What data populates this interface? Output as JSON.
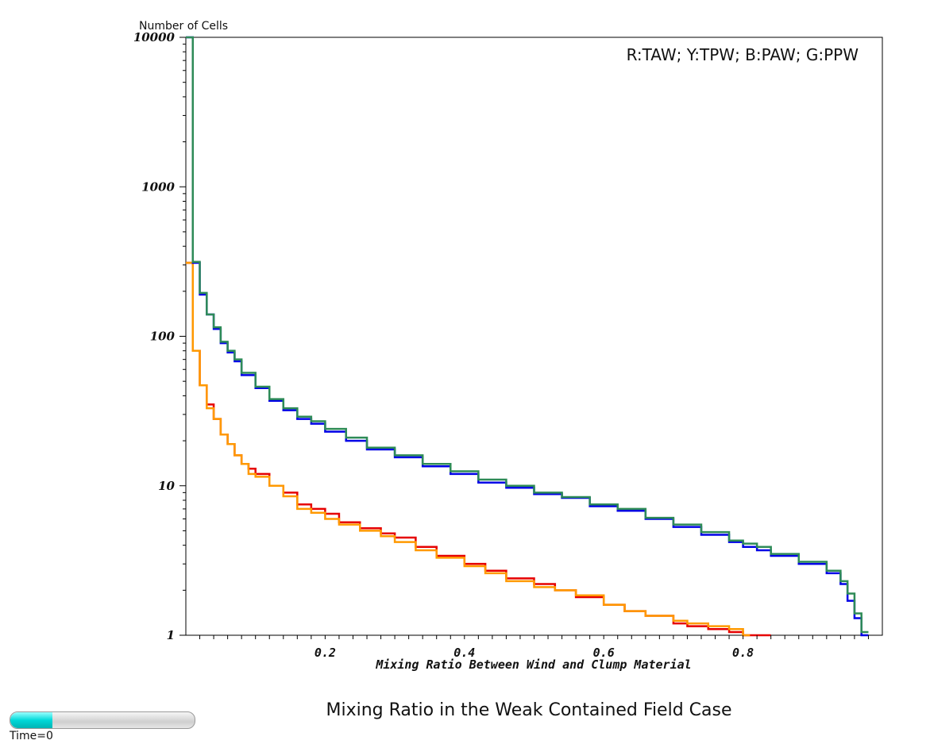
{
  "chart_data": {
    "type": "line",
    "step": true,
    "title": "Mixing Ratio in the Weak Contained Field Case",
    "xlabel": "Mixing Ratio Between Wind and Clump Material",
    "ylabel": "Number of Cells",
    "legend_text": "R:TAW; Y:TPW; B:PAW; G:PPW",
    "legend_position": "top-right",
    "xlim": [
      0,
      1.0
    ],
    "ylim": [
      1,
      10000
    ],
    "yscale": "log",
    "grid": false,
    "x_ticks": [
      0.2,
      0.4,
      0.6,
      0.8
    ],
    "x_tick_labels": [
      "0.2",
      "0.4",
      "0.6",
      "0.8"
    ],
    "y_ticks": [
      1,
      10,
      100,
      1000,
      10000
    ],
    "y_tick_labels": [
      "1",
      "10",
      "100",
      "1000",
      "10000"
    ],
    "series": [
      {
        "key": "TAW",
        "color": "#e60000",
        "x": [
          0.0,
          0.01,
          0.02,
          0.03,
          0.04,
          0.05,
          0.06,
          0.07,
          0.08,
          0.09,
          0.1,
          0.12,
          0.14,
          0.16,
          0.18,
          0.2,
          0.22,
          0.25,
          0.28,
          0.3,
          0.33,
          0.36,
          0.4,
          0.43,
          0.46,
          0.5,
          0.53,
          0.56,
          0.6,
          0.63,
          0.66,
          0.7,
          0.72,
          0.75,
          0.78,
          0.8,
          0.82,
          0.83
        ],
        "y": [
          310,
          80,
          47,
          35,
          28,
          22,
          19,
          16,
          14,
          13,
          12,
          10,
          9,
          7.5,
          7,
          6.5,
          5.7,
          5.2,
          4.8,
          4.5,
          3.9,
          3.4,
          3.0,
          2.7,
          2.4,
          2.2,
          2.0,
          1.8,
          1.6,
          1.45,
          1.35,
          1.2,
          1.15,
          1.1,
          1.05,
          1.0,
          1.0,
          1.0
        ]
      },
      {
        "key": "TPW",
        "color": "#ff9900",
        "x": [
          0.0,
          0.01,
          0.02,
          0.03,
          0.04,
          0.05,
          0.06,
          0.07,
          0.08,
          0.09,
          0.1,
          0.12,
          0.14,
          0.16,
          0.18,
          0.2,
          0.22,
          0.25,
          0.28,
          0.3,
          0.33,
          0.36,
          0.4,
          0.43,
          0.46,
          0.5,
          0.53,
          0.56,
          0.6,
          0.63,
          0.66,
          0.7,
          0.72,
          0.75,
          0.78,
          0.8
        ],
        "y": [
          310,
          80,
          47,
          33,
          28,
          22,
          19,
          16,
          14,
          12,
          11.5,
          10,
          8.5,
          7,
          6.6,
          6.0,
          5.5,
          5.0,
          4.6,
          4.2,
          3.7,
          3.3,
          2.9,
          2.6,
          2.3,
          2.1,
          2.0,
          1.85,
          1.6,
          1.45,
          1.35,
          1.25,
          1.2,
          1.15,
          1.1,
          1.0
        ]
      },
      {
        "key": "PAW",
        "color": "#0000e6",
        "x": [
          0.0,
          0.01,
          0.02,
          0.03,
          0.04,
          0.05,
          0.06,
          0.07,
          0.08,
          0.1,
          0.12,
          0.14,
          0.16,
          0.18,
          0.2,
          0.23,
          0.26,
          0.3,
          0.34,
          0.38,
          0.42,
          0.46,
          0.5,
          0.54,
          0.58,
          0.62,
          0.66,
          0.7,
          0.74,
          0.78,
          0.8,
          0.82,
          0.84,
          0.88,
          0.92,
          0.94,
          0.95,
          0.96,
          0.97
        ],
        "y": [
          10000,
          310,
          190,
          140,
          112,
          90,
          78,
          68,
          55,
          45,
          37,
          32,
          28,
          26,
          23,
          20,
          17.5,
          15.5,
          13.5,
          12,
          10.5,
          9.7,
          8.8,
          8.3,
          7.3,
          6.8,
          6.0,
          5.3,
          4.7,
          4.2,
          3.9,
          3.7,
          3.4,
          3.0,
          2.6,
          2.2,
          1.7,
          1.3,
          1.0
        ]
      },
      {
        "key": "PPW",
        "color": "#2e8b57",
        "x": [
          0.0,
          0.01,
          0.02,
          0.03,
          0.04,
          0.05,
          0.06,
          0.07,
          0.08,
          0.1,
          0.12,
          0.14,
          0.16,
          0.18,
          0.2,
          0.23,
          0.26,
          0.3,
          0.34,
          0.38,
          0.42,
          0.46,
          0.5,
          0.54,
          0.58,
          0.62,
          0.66,
          0.7,
          0.74,
          0.78,
          0.8,
          0.82,
          0.84,
          0.88,
          0.92,
          0.94,
          0.95,
          0.96,
          0.97
        ],
        "y": [
          10000,
          315,
          195,
          140,
          115,
          92,
          80,
          70,
          57,
          46,
          38,
          33,
          29,
          27,
          24,
          21,
          18,
          16,
          14,
          12.5,
          11,
          10,
          9.0,
          8.4,
          7.5,
          7.0,
          6.1,
          5.5,
          4.9,
          4.3,
          4.1,
          3.9,
          3.5,
          3.1,
          2.7,
          2.3,
          1.9,
          1.4,
          1.05
        ]
      }
    ]
  },
  "ui": {
    "time_label": "Time=0",
    "time_progress": 0.23
  }
}
